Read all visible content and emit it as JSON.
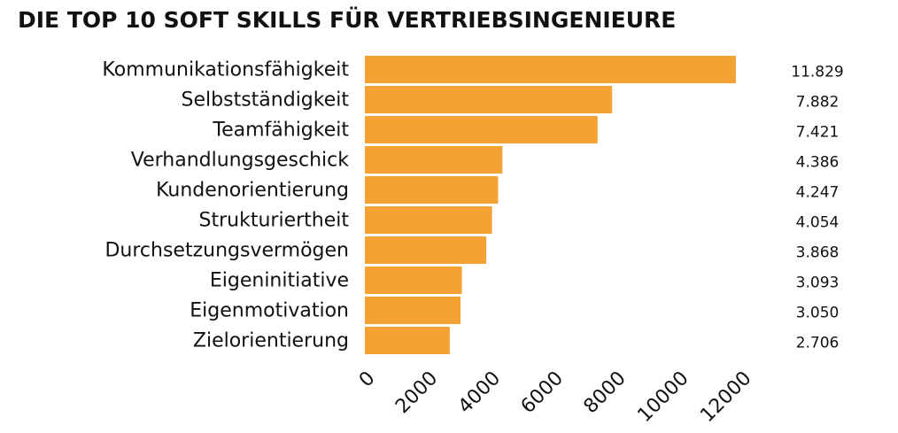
{
  "chart_data": {
    "type": "bar",
    "orientation": "horizontal",
    "title": "DIE TOP 10 SOFT SKILLS FÜR VERTRIEBSINGENIEURE",
    "categories": [
      "Kommunikationsfähigkeit",
      "Selbstständigkeit",
      "Teamfähigkeit",
      "Verhandlungsgeschick",
      "Kundenorientierung",
      "Strukturiertheit",
      "Durchsetzungsvermögen",
      "Eigeninitiative",
      "Eigenmotivation",
      "Zielorientierung"
    ],
    "values": [
      11829,
      7882,
      7421,
      4386,
      4247,
      4054,
      3868,
      3093,
      3050,
      2706
    ],
    "value_labels": [
      "11.829",
      "7.882",
      "7.421",
      "4.386",
      "4.247",
      "4.054",
      "3.868",
      "3.093",
      "3.050",
      "2.706"
    ],
    "xticks": [
      "0",
      "2000",
      "4000",
      "6000",
      "8000",
      "10000",
      "12000"
    ],
    "xlim": [
      0,
      12000
    ],
    "xlabel": "",
    "ylabel": "",
    "grid": false,
    "legend": "none",
    "bar_color": "#F4A234"
  }
}
